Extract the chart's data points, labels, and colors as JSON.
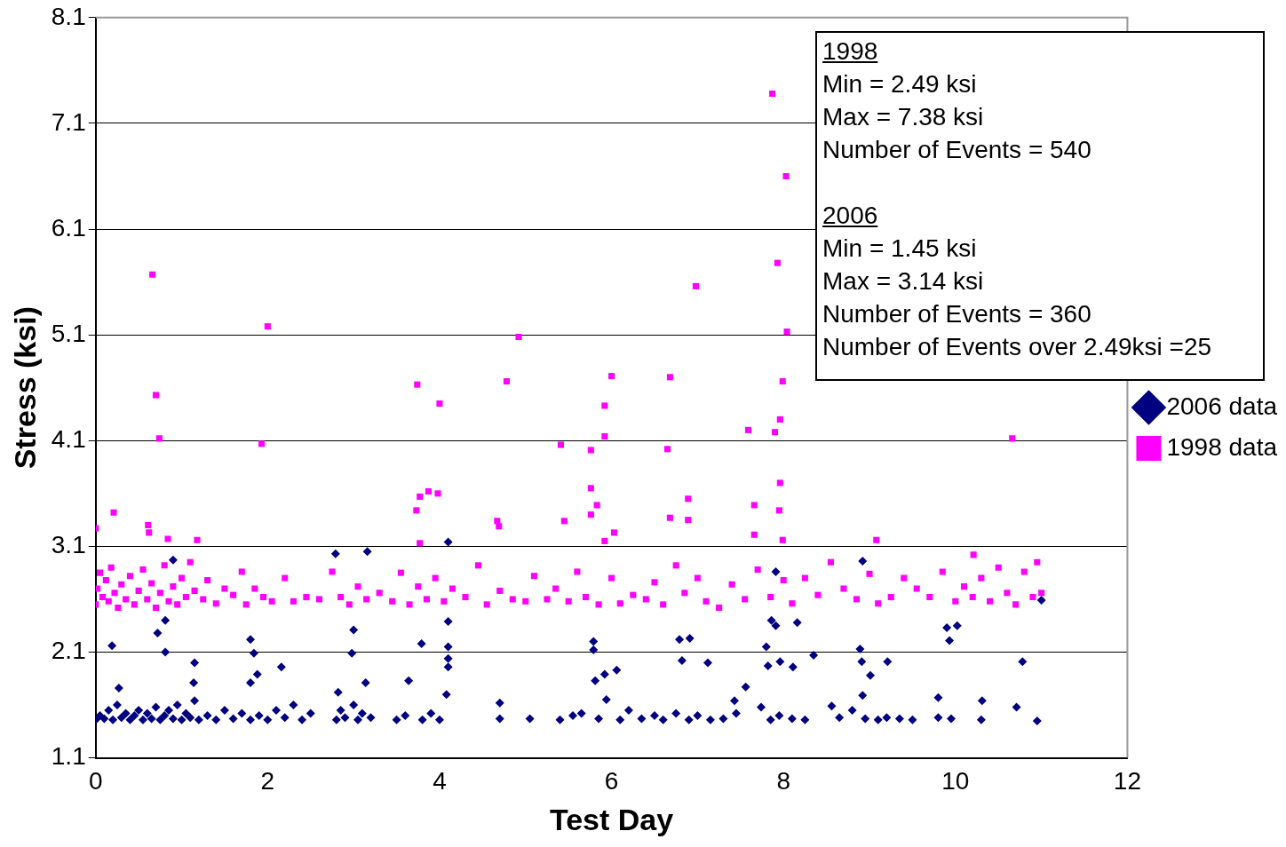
{
  "chart_data": {
    "type": "scatter",
    "xlabel": "Test Day",
    "ylabel": "Stress (ksi)",
    "xlim": [
      0,
      12
    ],
    "xticks": [
      0,
      2,
      4,
      6,
      8,
      10,
      12
    ],
    "ylim": [
      1.1,
      8.1
    ],
    "yticks": [
      1.1,
      2.1,
      3.1,
      4.1,
      5.1,
      6.1,
      7.1,
      8.1
    ],
    "grid": "y",
    "legend": "right",
    "annotations": [
      "1998\nMin = 2.49 ksi\nMax = 7.38 ksi\nNumber of Events = 540",
      "2006\nMin = 1.45 ksi\nMax = 3.14 ksi\nNumber of Events = 360\nNumber of Events over 2.49ksi =25"
    ],
    "series": [
      {
        "name": "2006 data",
        "color": "#000080",
        "marker": "diamond",
        "x": [
          0,
          0.05,
          0.1,
          0.15,
          0.2,
          0.25,
          0.3,
          0.35,
          0.4,
          0.45,
          0.5,
          0.55,
          0.6,
          0.65,
          0.7,
          0.75,
          0.8,
          0.85,
          0.9,
          0.95,
          1.0,
          1.05,
          1.1,
          1.15,
          1.2,
          1.3,
          1.4,
          1.5,
          1.6,
          1.7,
          1.8,
          1.9,
          2.0,
          2.1,
          2.2,
          2.3,
          2.4,
          2.5,
          2.8,
          2.85,
          2.9,
          3.0,
          3.05,
          3.1,
          3.2,
          3.5,
          3.6,
          3.8,
          3.9,
          4.0,
          4.7,
          5.05,
          5.4,
          5.55,
          5.65,
          5.85,
          6.1,
          6.2,
          6.35,
          6.5,
          6.6,
          6.75,
          6.9,
          7.0,
          7.15,
          7.3,
          7.45,
          7.85,
          7.95,
          8.1,
          8.25,
          8.65,
          8.8,
          8.95,
          9.1,
          9.2,
          9.35,
          9.5,
          9.8,
          9.95,
          10.3,
          10.95,
          4.1,
          2.79,
          3.16,
          8.92,
          0.9,
          0.81,
          0.72,
          0.19,
          0.81,
          1.15,
          1.8,
          1.84,
          2.16,
          1.88,
          1.8,
          0.27,
          1.14,
          3.79,
          3.64,
          4.1,
          4.1,
          4.1,
          4.1,
          4.08,
          3.0,
          2.98,
          3.14,
          2.82,
          5.79,
          5.79,
          5.81,
          5.92,
          6.06,
          5.94,
          6.79,
          6.91,
          6.82,
          7.12,
          7.43,
          7.56,
          7.8,
          7.82,
          7.96,
          7.91,
          7.86,
          7.91,
          8.16,
          8.11,
          8.35,
          8.89,
          8.91,
          9.01,
          9.21,
          9.9,
          9.93,
          10.02,
          10.78,
          11.0,
          9.8,
          8.92,
          10.31,
          10.71,
          8.56,
          7.74,
          4.7
        ],
        "values": [
          1.46,
          1.5,
          1.47,
          1.55,
          1.46,
          1.6,
          1.48,
          1.52,
          1.46,
          1.5,
          1.55,
          1.46,
          1.52,
          1.47,
          1.58,
          1.46,
          1.5,
          1.55,
          1.47,
          1.6,
          1.46,
          1.52,
          1.48,
          1.64,
          1.46,
          1.5,
          1.46,
          1.55,
          1.47,
          1.52,
          1.46,
          1.5,
          1.46,
          1.55,
          1.48,
          1.6,
          1.46,
          1.52,
          1.46,
          1.55,
          1.48,
          1.6,
          1.46,
          1.52,
          1.48,
          1.46,
          1.5,
          1.46,
          1.52,
          1.46,
          1.47,
          1.47,
          1.46,
          1.5,
          1.52,
          1.47,
          1.46,
          1.55,
          1.47,
          1.5,
          1.46,
          1.52,
          1.46,
          1.5,
          1.46,
          1.47,
          1.52,
          1.46,
          1.5,
          1.47,
          1.46,
          1.48,
          1.55,
          1.47,
          1.46,
          1.48,
          1.47,
          1.46,
          1.48,
          1.47,
          1.46,
          1.45,
          3.14,
          3.03,
          3.05,
          2.96,
          2.97,
          2.4,
          2.28,
          2.16,
          2.1,
          2.0,
          2.22,
          2.09,
          1.96,
          1.89,
          1.81,
          1.76,
          1.81,
          2.18,
          1.83,
          2.39,
          2.15,
          2.04,
          1.96,
          1.7,
          2.31,
          2.09,
          1.81,
          1.72,
          2.2,
          2.12,
          1.83,
          1.89,
          1.93,
          1.65,
          2.22,
          2.23,
          2.02,
          2.0,
          1.64,
          1.77,
          2.15,
          1.97,
          2.01,
          2.86,
          2.4,
          2.35,
          2.38,
          1.96,
          2.07,
          2.13,
          2.01,
          1.88,
          2.01,
          2.33,
          2.21,
          2.35,
          2.01,
          2.59,
          1.67,
          1.69,
          1.64,
          1.58,
          1.59,
          1.58,
          1.62
        ]
      },
      {
        "name": "1998 data",
        "color": "#ff00ff",
        "marker": "square",
        "x": [
          0,
          0.02,
          0.05,
          0.08,
          0.12,
          0.15,
          0.18,
          0.22,
          0.26,
          0.3,
          0.35,
          0.4,
          0.45,
          0.5,
          0.55,
          0.6,
          0.65,
          0.7,
          0.75,
          0.8,
          0.85,
          0.9,
          0.95,
          1.0,
          1.05,
          1.1,
          1.15,
          1.25,
          1.3,
          1.4,
          1.5,
          1.6,
          1.7,
          1.75,
          1.85,
          1.95,
          2.05,
          2.2,
          2.3,
          2.45,
          2.6,
          2.75,
          2.85,
          2.95,
          3.05,
          3.15,
          3.3,
          3.45,
          3.55,
          3.65,
          3.75,
          3.85,
          3.95,
          4.05,
          4.15,
          4.3,
          4.45,
          4.55,
          4.7,
          4.85,
          5.0,
          5.1,
          5.25,
          5.35,
          5.5,
          5.6,
          5.7,
          5.85,
          6.0,
          6.1,
          6.25,
          6.4,
          6.5,
          6.6,
          6.75,
          6.85,
          7.0,
          7.1,
          7.25,
          7.4,
          7.55,
          7.7,
          7.85,
          8.0,
          8.1,
          8.25,
          8.4,
          8.55,
          8.7,
          8.85,
          9.0,
          9.1,
          9.25,
          9.4,
          9.55,
          9.7,
          9.85,
          10.0,
          10.1,
          10.2,
          10.3,
          10.4,
          10.5,
          10.6,
          10.7,
          10.8,
          10.9,
          10.95,
          11.0,
          0.66,
          0.7,
          0.74,
          2.0,
          1.93,
          3.74,
          4.0,
          4.78,
          4.92,
          5.41,
          5.76,
          6.0,
          5.92,
          5.92,
          6.68,
          6.65,
          6.98,
          7.87,
          8.03,
          7.93,
          8.04,
          7.99,
          7.96,
          7.59,
          7.9,
          10.66,
          0,
          0.21,
          0.61,
          0.62,
          0.84,
          1.18,
          3.73,
          3.77,
          3.87,
          3.98,
          3.77,
          4.67,
          4.69,
          5.45,
          5.76,
          5.76,
          5.83,
          5.92,
          6.03,
          6.68,
          6.89,
          6.89,
          7.66,
          7.66,
          7.95,
          7.96,
          7.99,
          9.08,
          10.21
        ],
        "values": [
          2.55,
          2.7,
          2.85,
          2.62,
          2.78,
          2.58,
          2.9,
          2.66,
          2.52,
          2.74,
          2.6,
          2.82,
          2.55,
          2.68,
          2.88,
          2.6,
          2.75,
          2.52,
          2.66,
          2.92,
          2.58,
          2.72,
          2.55,
          2.8,
          2.62,
          2.95,
          2.68,
          2.6,
          2.78,
          2.56,
          2.7,
          2.64,
          2.86,
          2.55,
          2.7,
          2.62,
          2.58,
          2.8,
          2.58,
          2.62,
          2.6,
          2.86,
          2.62,
          2.55,
          2.72,
          2.6,
          2.66,
          2.58,
          2.85,
          2.55,
          2.72,
          2.6,
          2.8,
          2.58,
          2.7,
          2.62,
          2.92,
          2.55,
          2.68,
          2.6,
          2.58,
          2.82,
          2.6,
          2.7,
          2.58,
          2.86,
          2.62,
          2.55,
          2.8,
          2.56,
          2.64,
          2.6,
          2.76,
          2.55,
          2.92,
          2.66,
          2.8,
          2.58,
          2.52,
          2.74,
          2.6,
          2.88,
          2.62,
          2.78,
          2.56,
          2.8,
          2.64,
          2.95,
          2.7,
          2.6,
          2.84,
          2.56,
          2.62,
          2.8,
          2.7,
          2.62,
          2.86,
          2.58,
          2.72,
          2.62,
          2.8,
          2.58,
          2.9,
          2.66,
          2.55,
          2.86,
          2.62,
          2.95,
          2.66,
          5.67,
          4.53,
          4.12,
          5.18,
          4.07,
          4.63,
          4.45,
          4.66,
          5.08,
          4.06,
          4.01,
          4.71,
          4.14,
          4.43,
          4.7,
          4.02,
          5.56,
          7.38,
          6.6,
          5.78,
          5.13,
          4.66,
          4.3,
          4.2,
          4.18,
          4.12,
          3.27,
          3.42,
          3.3,
          3.23,
          3.17,
          3.16,
          3.44,
          3.57,
          3.62,
          3.6,
          3.13,
          3.34,
          3.29,
          3.34,
          3.65,
          3.4,
          3.49,
          3.15,
          3.23,
          3.37,
          3.55,
          3.35,
          3.49,
          3.21,
          3.44,
          3.7,
          3.16,
          3.16,
          3.02
        ]
      }
    ]
  }
}
